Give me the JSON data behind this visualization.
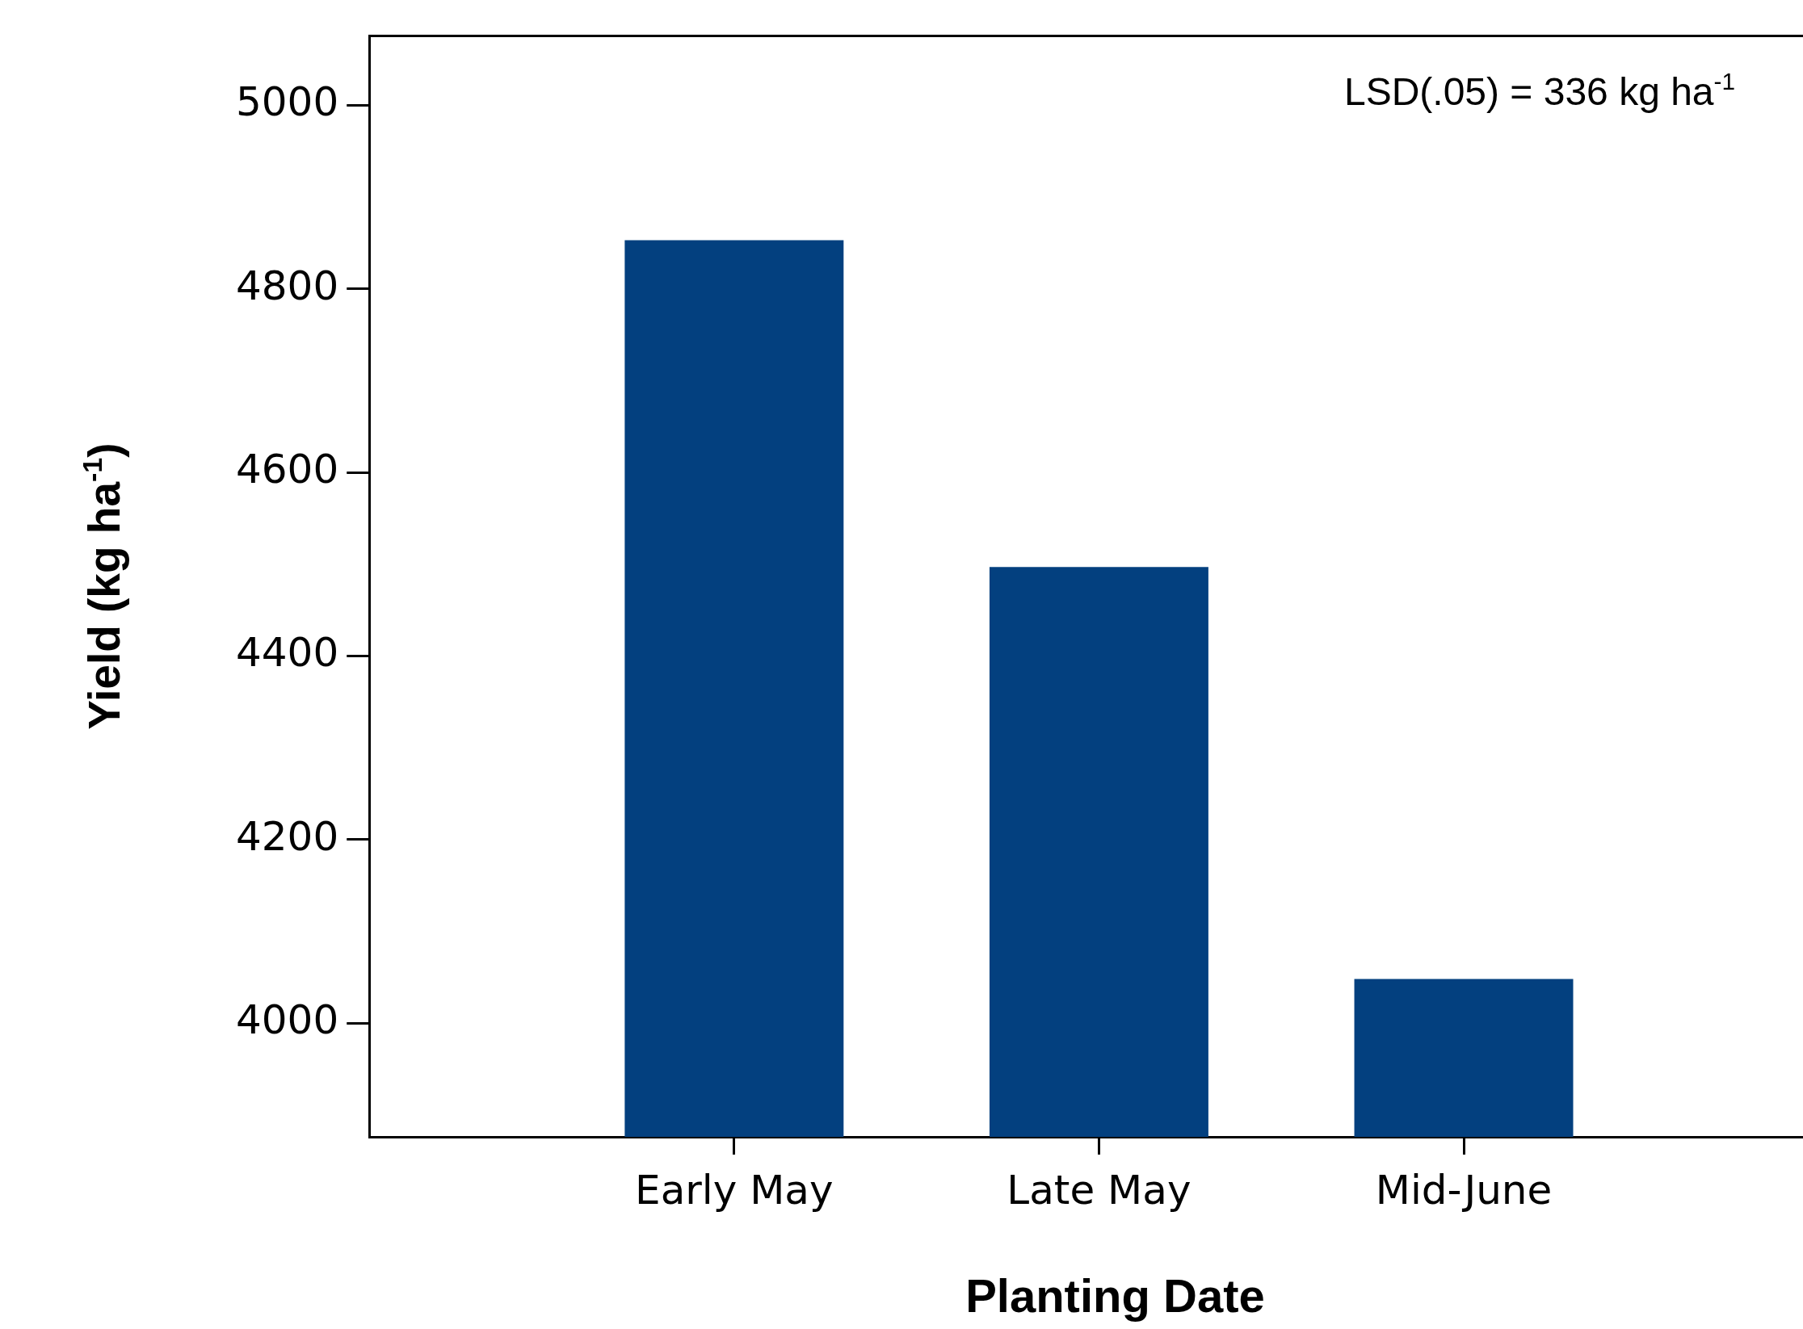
{
  "chart_data": {
    "type": "bar",
    "xlabel": "Planting Date",
    "ylabel": "Yield (kg ha$^{-1}$)",
    "categories": [
      "Early May",
      "Late May",
      "Mid-June"
    ],
    "values": [
      4853,
      4497,
      4048
    ],
    "color": "#03407f",
    "ylim": [
      3876,
      5076
    ],
    "yticks": [
      4000,
      4200,
      4400,
      4600,
      4800,
      5000
    ],
    "grid": false,
    "legend": false,
    "annotations": [
      "LSD(.05) = 336 kg ha$^{-1}$"
    ]
  }
}
